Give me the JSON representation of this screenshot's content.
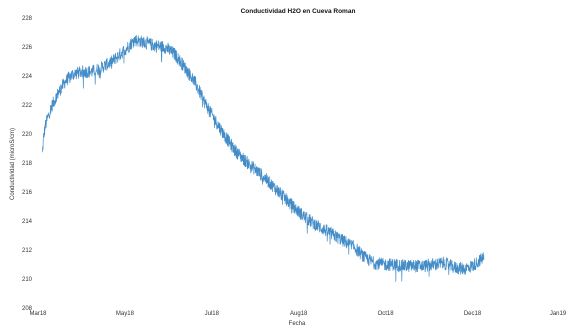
{
  "chart_data": {
    "type": "line",
    "title": "Conductividad H2O en Cueva Roman",
    "xlabel": "Fecha",
    "ylabel": "Conductividad (microS/cm)",
    "x_tick_labels": [
      "Mar18",
      "May18",
      "Jul18",
      "Aug18",
      "Oct18",
      "Dec18",
      "Jan19"
    ],
    "x_tick_values": [
      "2018-03-01",
      "2018-05-01",
      "2018-07-01",
      "2018-08-31",
      "2018-10-31",
      "2018-12-31",
      "2019-03-01"
    ],
    "xlim": [
      "2018-03-01",
      "2019-03-01"
    ],
    "ylim": [
      208,
      228
    ],
    "y_ticks": [
      208,
      210,
      212,
      214,
      216,
      218,
      220,
      222,
      224,
      226,
      228
    ],
    "grid": false,
    "legend": "none",
    "series_color": "#2f7fc1",
    "series": [
      {
        "x": [
          "2018-03-04",
          "2018-03-05",
          "2018-03-06",
          "2018-03-08",
          "2018-03-11",
          "2018-03-15",
          "2018-03-20",
          "2018-03-25",
          "2018-04-01",
          "2018-04-08",
          "2018-04-15",
          "2018-04-22",
          "2018-05-01",
          "2018-05-08",
          "2018-05-15",
          "2018-05-22",
          "2018-05-29",
          "2018-06-05",
          "2018-06-12",
          "2018-06-19",
          "2018-06-26",
          "2018-07-03",
          "2018-07-10",
          "2018-07-17",
          "2018-07-24",
          "2018-07-31",
          "2018-08-07",
          "2018-08-14",
          "2018-08-21",
          "2018-08-28",
          "2018-09-04",
          "2018-09-11",
          "2018-09-18",
          "2018-09-25",
          "2018-10-02",
          "2018-10-09",
          "2018-10-16",
          "2018-10-23",
          "2018-10-30",
          "2018-11-06",
          "2018-11-13",
          "2018-11-20",
          "2018-11-27",
          "2018-12-04",
          "2018-12-11",
          "2018-12-18",
          "2018-12-25",
          "2018-12-31",
          "2019-01-04",
          "2019-01-08"
        ],
        "y": [
          218.6,
          219.8,
          220.5,
          221.2,
          222.0,
          222.8,
          223.6,
          224.1,
          224.3,
          224.3,
          224.6,
          225.0,
          225.8,
          226.5,
          226.3,
          226.1,
          226.0,
          225.5,
          224.6,
          223.6,
          222.2,
          221.0,
          219.9,
          218.9,
          218.2,
          217.6,
          217.0,
          216.3,
          215.6,
          214.9,
          214.3,
          213.8,
          213.4,
          213.0,
          212.6,
          212.2,
          211.5,
          211.1,
          211.0,
          211.0,
          210.9,
          210.9,
          210.9,
          211.0,
          211.1,
          210.8,
          210.7,
          210.9,
          211.2,
          211.5
        ]
      }
    ]
  }
}
